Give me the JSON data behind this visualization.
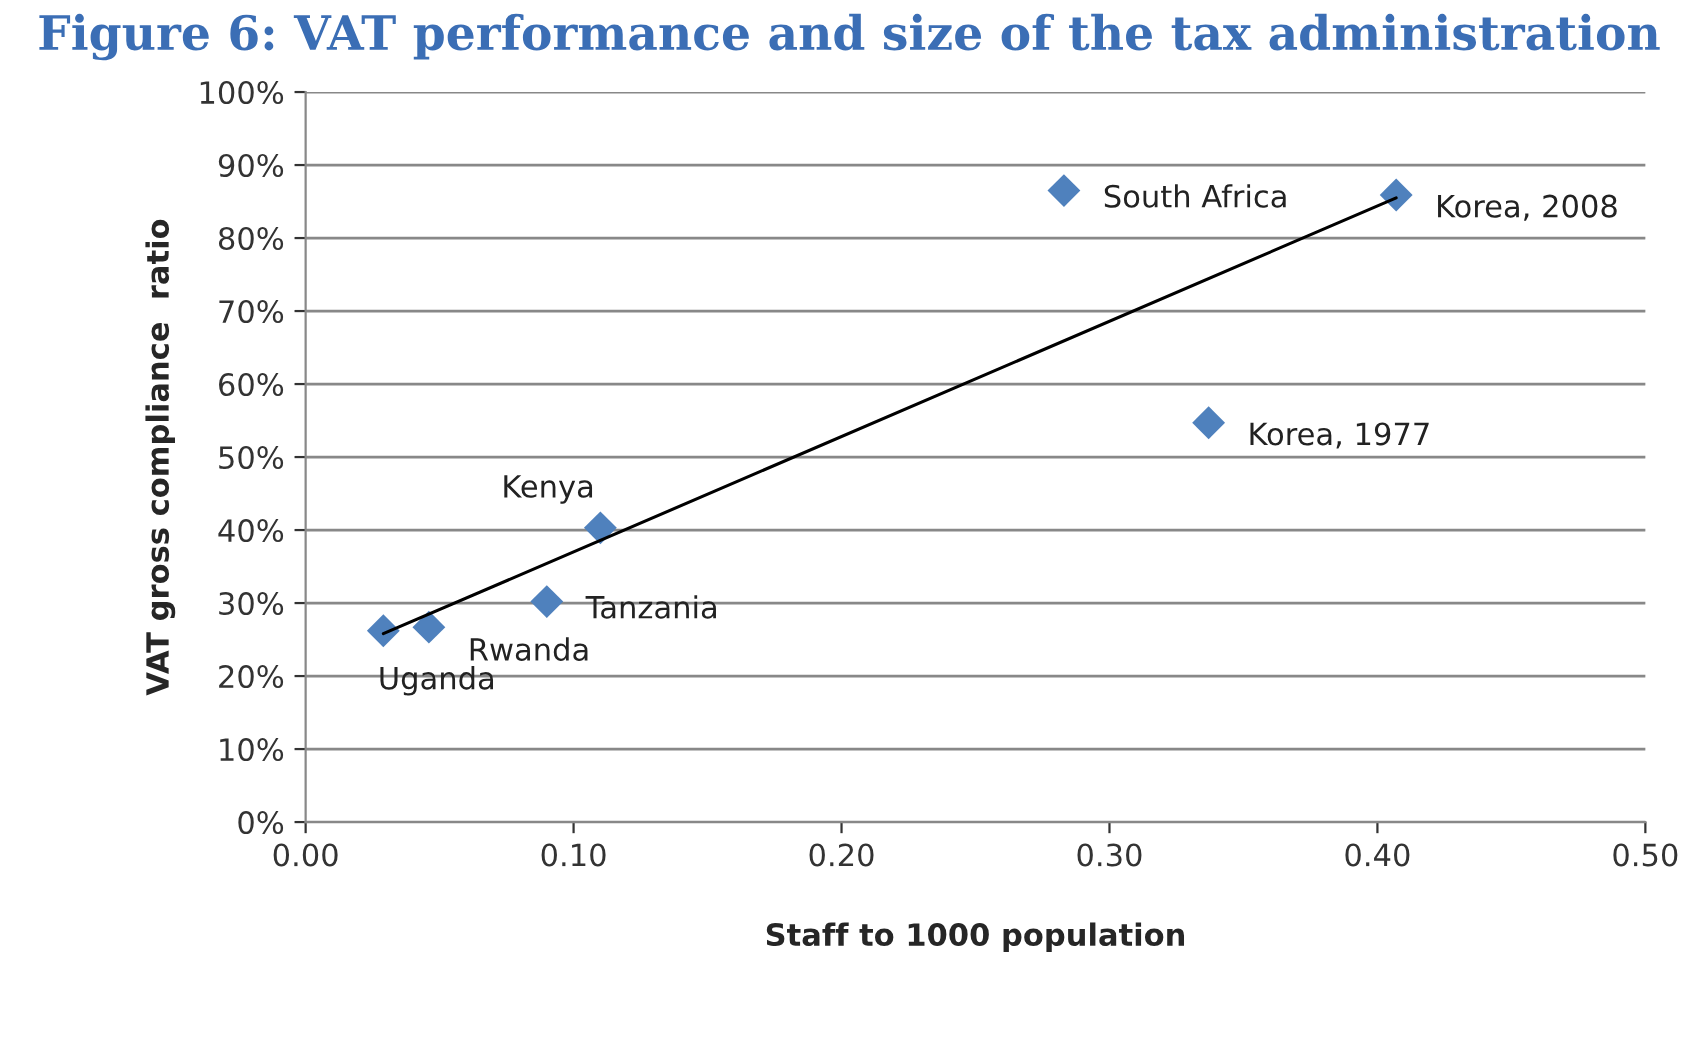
{
  "chart_data": {
    "type": "scatter",
    "title": "Figure 6: VAT performance and size of the tax administration",
    "xlabel": "Staff to 1000 population",
    "ylabel": "VAT gross compliance  ratio",
    "series": [
      {
        "color": "#4f81bd",
        "x": [
          0.029,
          0.046,
          0.09,
          0.11,
          0.283,
          0.407,
          0.337
        ],
        "values": [
          26.2,
          26.7,
          30.2,
          40.3,
          86.5,
          85.9,
          54.7
        ],
        "marker": "diamond"
      },
      {
        "type": "line",
        "color": "#000000",
        "x": [
          0.029,
          0.407
        ],
        "values": [
          25.8,
          85.5
        ],
        "line_style": "solid"
      }
    ],
    "annotations": [
      {
        "text": "Uganda",
        "x": 0.029,
        "y": 26.2
      },
      {
        "text": "Rwanda",
        "x": 0.046,
        "y": 26.7
      },
      {
        "text": "Tanzania",
        "x": 0.09,
        "y": 30.2
      },
      {
        "text": "Kenya",
        "x": 0.11,
        "y": 40.3
      },
      {
        "text": "South Africa",
        "x": 0.283,
        "y": 86.5
      },
      {
        "text": "Korea, 2008",
        "x": 0.407,
        "y": 85.9
      },
      {
        "text": "Korea, 1977",
        "x": 0.337,
        "y": 54.7
      }
    ],
    "xlim": [
      0,
      0.5
    ],
    "xticks": [
      {
        "value": 0,
        "label": "0.00"
      },
      {
        "value": 0.1,
        "label": "0.10"
      },
      {
        "value": 0.2,
        "label": "0.20"
      },
      {
        "value": 0.3,
        "label": "0.30"
      },
      {
        "value": 0.4,
        "label": "0.40"
      },
      {
        "value": 0.5,
        "label": "0.50"
      }
    ],
    "ylim": [
      0,
      100
    ],
    "yticks": [
      {
        "value": 0,
        "label": "0%"
      },
      {
        "value": 10,
        "label": "10%"
      },
      {
        "value": 20,
        "label": "20%"
      },
      {
        "value": 30,
        "label": "30%"
      },
      {
        "value": 40,
        "label": "40%"
      },
      {
        "value": 50,
        "label": "50%"
      },
      {
        "value": 60,
        "label": "60%"
      },
      {
        "value": 70,
        "label": "70%"
      },
      {
        "value": 80,
        "label": "80%"
      },
      {
        "value": 90,
        "label": "90%"
      },
      {
        "value": 100,
        "label": "100%"
      }
    ],
    "grid": "y",
    "legend": false
  }
}
